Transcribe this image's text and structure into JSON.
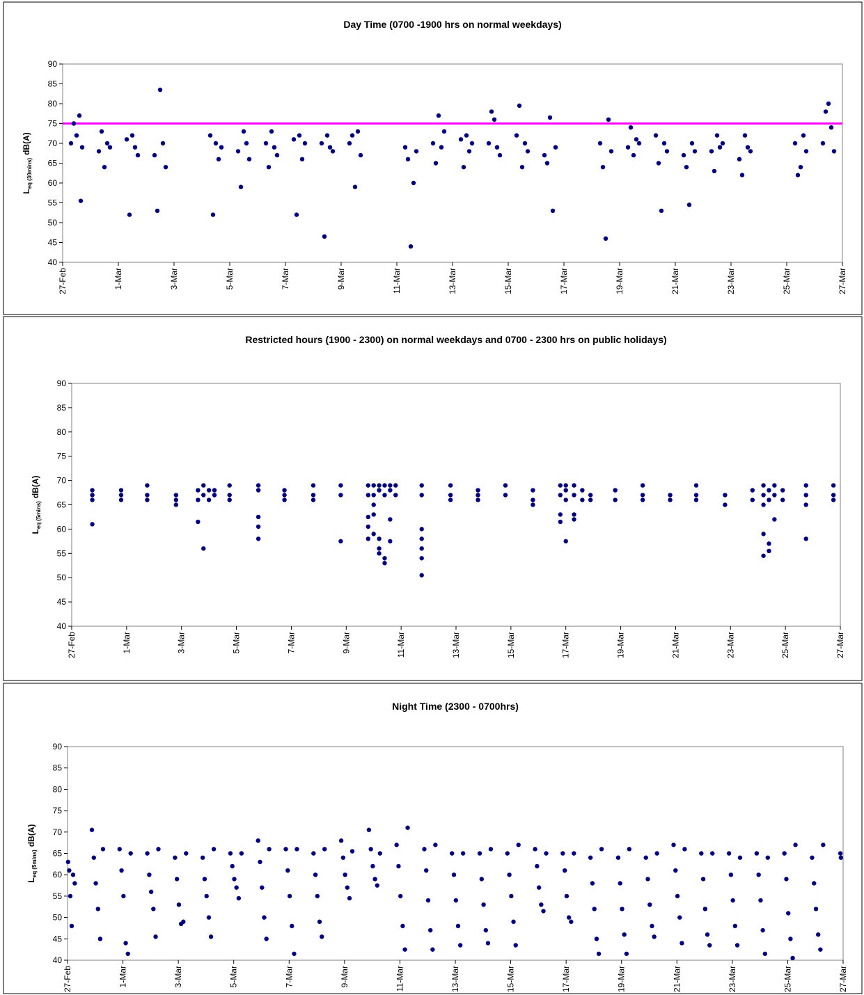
{
  "chart_data": [
    {
      "type": "scatter",
      "title": "Day Time (0700 -1900 hrs on normal weekdays)",
      "y_label": [
        "L",
        "eq (30mins)",
        "dB(A)"
      ],
      "color": "#000080",
      "hline": {
        "value": 75,
        "color": "#ff00ff"
      },
      "xlim": [
        0,
        28
      ],
      "ylim": [
        40,
        90
      ],
      "yticks": [
        40,
        45,
        50,
        55,
        60,
        65,
        70,
        75,
        80,
        85,
        90
      ],
      "xticks": [
        {
          "value": 0,
          "label": "27-Feb"
        },
        {
          "value": 2,
          "label": "1-Mar"
        },
        {
          "value": 4,
          "label": "3-Mar"
        },
        {
          "value": 6,
          "label": "5-Mar"
        },
        {
          "value": 8,
          "label": "7-Mar"
        },
        {
          "value": 10,
          "label": "9-Mar"
        },
        {
          "value": 12,
          "label": "11-Mar"
        },
        {
          "value": 14,
          "label": "13-Mar"
        },
        {
          "value": 16,
          "label": "15-Mar"
        },
        {
          "value": 18,
          "label": "17-Mar"
        },
        {
          "value": 20,
          "label": "19-Mar"
        },
        {
          "value": 22,
          "label": "21-Mar"
        },
        {
          "value": 24,
          "label": "23-Mar"
        },
        {
          "value": 26,
          "label": "25-Mar"
        },
        {
          "value": 28,
          "label": "27-Mar"
        }
      ],
      "x": [
        0.3,
        0.4,
        0.5,
        0.6,
        0.7,
        0.65,
        1.3,
        1.4,
        1.5,
        1.6,
        1.7,
        2.3,
        2.4,
        2.5,
        2.6,
        2.7,
        3.3,
        3.4,
        3.5,
        3.6,
        3.7,
        5.3,
        5.4,
        5.5,
        5.6,
        5.7,
        6.3,
        6.4,
        6.5,
        6.6,
        6.7,
        7.3,
        7.4,
        7.5,
        7.6,
        7.7,
        8.3,
        8.4,
        8.5,
        8.6,
        8.7,
        9.3,
        9.4,
        9.5,
        9.6,
        9.7,
        10.3,
        10.4,
        10.5,
        10.6,
        10.7,
        12.3,
        12.4,
        12.5,
        12.6,
        12.7,
        13.3,
        13.4,
        13.5,
        13.6,
        13.7,
        14.3,
        14.4,
        14.5,
        14.6,
        14.7,
        15.3,
        15.4,
        15.5,
        15.6,
        15.7,
        16.3,
        16.4,
        16.5,
        16.6,
        16.7,
        17.3,
        17.4,
        17.5,
        17.6,
        17.7,
        19.3,
        19.4,
        19.5,
        19.6,
        19.7,
        20.3,
        20.4,
        20.5,
        20.6,
        20.7,
        21.3,
        21.4,
        21.5,
        21.6,
        21.7,
        22.3,
        22.4,
        22.5,
        22.6,
        22.7,
        23.3,
        23.4,
        23.5,
        23.6,
        23.7,
        24.3,
        24.4,
        24.5,
        24.6,
        24.7,
        26.3,
        26.4,
        26.5,
        26.6,
        26.7,
        27.3,
        27.4,
        27.5,
        27.6,
        27.7
      ],
      "values": [
        70,
        75,
        72,
        77,
        69,
        55.5,
        68,
        73,
        64,
        70,
        69,
        71,
        52,
        72,
        69,
        67,
        67,
        53,
        83.5,
        70,
        64,
        72,
        52,
        70,
        66,
        69,
        68,
        59,
        73,
        70,
        66,
        70,
        64,
        73,
        69,
        67,
        71,
        52,
        72,
        66,
        70,
        70,
        46.5,
        72,
        69,
        68,
        70,
        72,
        59,
        73,
        67,
        69,
        66,
        44,
        60,
        68,
        70,
        65,
        77,
        69,
        73,
        71,
        64,
        72,
        68,
        70,
        70,
        78,
        76,
        69,
        67,
        72,
        79.5,
        64,
        70,
        68,
        67,
        65,
        76.5,
        53,
        69,
        70,
        64,
        46,
        76,
        68,
        69,
        74,
        67,
        71,
        70,
        72,
        65,
        53,
        70,
        68,
        67,
        64,
        54.5,
        70,
        68,
        68,
        63,
        72,
        69,
        70,
        66,
        62,
        72,
        69,
        68,
        70,
        62,
        64,
        72,
        68,
        70,
        78,
        80,
        74,
        68
      ]
    },
    {
      "type": "scatter",
      "title": "Restricted hours (1900 - 2300) on normal weekdays and 0700 - 2300 hrs on public holidays)",
      "y_label": [
        "L",
        "eq (5mins)",
        "dB(A)"
      ],
      "color": "#000080",
      "xlim": [
        0,
        28
      ],
      "ylim": [
        40,
        90
      ],
      "yticks": [
        40,
        45,
        50,
        55,
        60,
        65,
        70,
        75,
        80,
        85,
        90
      ],
      "xticks": [
        {
          "value": 0,
          "label": "27-Feb"
        },
        {
          "value": 2,
          "label": "1-Mar"
        },
        {
          "value": 4,
          "label": "3-Mar"
        },
        {
          "value": 6,
          "label": "5-Mar"
        },
        {
          "value": 8,
          "label": "7-Mar"
        },
        {
          "value": 10,
          "label": "9-Mar"
        },
        {
          "value": 12,
          "label": "11-Mar"
        },
        {
          "value": 14,
          "label": "13-Mar"
        },
        {
          "value": 16,
          "label": "15-Mar"
        },
        {
          "value": 18,
          "label": "17-Mar"
        },
        {
          "value": 20,
          "label": "19-Mar"
        },
        {
          "value": 22,
          "label": "21-Mar"
        },
        {
          "value": 24,
          "label": "23-Mar"
        },
        {
          "value": 26,
          "label": "25-Mar"
        },
        {
          "value": 28,
          "label": "27-Mar"
        }
      ],
      "x": [
        0.75,
        0.75,
        0.75,
        0.75,
        1.8,
        1.8,
        1.8,
        2.75,
        2.75,
        2.75,
        3.8,
        3.8,
        3.8,
        4.6,
        4.6,
        4.6,
        4.8,
        4.8,
        4.8,
        5.0,
        5.0,
        5.2,
        5.2,
        5.75,
        5.75,
        5.75,
        6.8,
        6.8,
        6.8,
        6.8,
        6.8,
        7.75,
        7.75,
        7.75,
        8.8,
        8.8,
        8.8,
        9.8,
        9.8,
        9.8,
        10.8,
        10.8,
        10.8,
        10.8,
        10.8,
        11.0,
        11.0,
        11.0,
        11.0,
        11.0,
        11.2,
        11.2,
        11.2,
        11.2,
        11.2,
        11.4,
        11.4,
        11.4,
        11.4,
        11.6,
        11.6,
        11.6,
        11.6,
        11.8,
        11.8,
        12.75,
        12.75,
        12.75,
        12.75,
        12.75,
        12.75,
        12.75,
        13.8,
        13.8,
        13.8,
        14.8,
        14.8,
        14.8,
        15.8,
        15.8,
        16.8,
        16.8,
        16.8,
        17.8,
        17.8,
        17.8,
        17.8,
        18.0,
        18.0,
        18.0,
        18.0,
        18.3,
        18.3,
        18.3,
        18.3,
        18.6,
        18.6,
        18.9,
        18.9,
        19.8,
        19.8,
        20.8,
        20.8,
        20.8,
        21.8,
        21.8,
        22.75,
        22.75,
        22.75,
        23.8,
        23.8,
        24.8,
        24.8,
        25.2,
        25.2,
        25.2,
        25.2,
        25.2,
        25.4,
        25.4,
        25.4,
        25.4,
        25.6,
        25.6,
        25.6,
        25.9,
        25.9,
        26.75,
        26.75,
        26.75,
        26.75,
        27.75,
        27.75,
        27.75
      ],
      "values": [
        68,
        67,
        66,
        61,
        68,
        67,
        66,
        69,
        67,
        66,
        67,
        66,
        65,
        68,
        66,
        61.5,
        69,
        67,
        56,
        68,
        66,
        68,
        67,
        69,
        67,
        66,
        69,
        68,
        62.5,
        60.5,
        58,
        68,
        67,
        66,
        69,
        67,
        66,
        69,
        67,
        57.5,
        69,
        67,
        62.5,
        60.5,
        58,
        69,
        67,
        65,
        63,
        59,
        69,
        68,
        58,
        56,
        55,
        69,
        67,
        54,
        53,
        69,
        68,
        62,
        57.5,
        69,
        67,
        69,
        67,
        60,
        58,
        56,
        54,
        50.5,
        69,
        67,
        66,
        68,
        67,
        66,
        69,
        67,
        68,
        66,
        65,
        69,
        67,
        63,
        61.5,
        69,
        68,
        66,
        57.5,
        69,
        67,
        63,
        62,
        68,
        66,
        67,
        66,
        68,
        66,
        69,
        67,
        66,
        67,
        66,
        69,
        67,
        66,
        67,
        65,
        68,
        66,
        69,
        67,
        65,
        59,
        54.5,
        68,
        66,
        57,
        55.5,
        69,
        67,
        62,
        68,
        66,
        69,
        67,
        65,
        58,
        69,
        67,
        66
      ]
    },
    {
      "type": "scatter",
      "title": "Night Time (2300 - 0700hrs)",
      "y_label": [
        "L",
        "eq (5mins)",
        "dB(A)"
      ],
      "color": "#000080",
      "xlim": [
        0,
        28
      ],
      "ylim": [
        40,
        90
      ],
      "yticks": [
        40,
        45,
        50,
        55,
        60,
        65,
        70,
        75,
        80,
        85,
        90
      ],
      "xticks": [
        {
          "value": 0,
          "label": "27-Feb"
        },
        {
          "value": 2,
          "label": "1-Mar"
        },
        {
          "value": 4,
          "label": "3-Mar"
        },
        {
          "value": 6,
          "label": "5-Mar"
        },
        {
          "value": 8,
          "label": "7-Mar"
        },
        {
          "value": 10,
          "label": "9-Mar"
        },
        {
          "value": 12,
          "label": "11-Mar"
        },
        {
          "value": 14,
          "label": "13-Mar"
        },
        {
          "value": 16,
          "label": "15-Mar"
        },
        {
          "value": 18,
          "label": "17-Mar"
        },
        {
          "value": 20,
          "label": "19-Mar"
        },
        {
          "value": 22,
          "label": "21-Mar"
        },
        {
          "value": 24,
          "label": "23-Mar"
        },
        {
          "value": 26,
          "label": "25-Mar"
        },
        {
          "value": 28,
          "label": "27-Mar"
        }
      ],
      "x": [
        0.02,
        0.06,
        0.1,
        0.15,
        0.2,
        0.26,
        0.88,
        0.95,
        1.02,
        1.1,
        1.18,
        1.28,
        1.88,
        1.95,
        2.02,
        2.1,
        2.18,
        2.28,
        2.88,
        2.95,
        3.02,
        3.1,
        3.18,
        3.28,
        3.88,
        3.95,
        4.02,
        4.1,
        4.18,
        4.28,
        4.88,
        4.95,
        5.02,
        5.1,
        5.18,
        5.28,
        5.88,
        5.95,
        6.02,
        6.1,
        6.18,
        6.28,
        6.88,
        6.95,
        7.02,
        7.1,
        7.18,
        7.28,
        7.88,
        7.95,
        8.02,
        8.1,
        8.18,
        8.28,
        8.88,
        8.95,
        9.02,
        9.1,
        9.18,
        9.28,
        9.88,
        9.95,
        10.02,
        10.1,
        10.18,
        10.28,
        10.88,
        10.95,
        11.02,
        11.1,
        11.18,
        11.28,
        11.88,
        11.95,
        12.02,
        12.1,
        12.18,
        12.28,
        12.88,
        12.95,
        13.02,
        13.1,
        13.18,
        13.28,
        13.88,
        13.95,
        14.02,
        14.1,
        14.18,
        14.28,
        14.88,
        14.95,
        15.02,
        15.1,
        15.18,
        15.28,
        15.88,
        15.95,
        16.02,
        16.1,
        16.18,
        16.28,
        16.88,
        16.95,
        17.02,
        17.1,
        17.18,
        17.28,
        17.88,
        17.95,
        18.02,
        18.1,
        18.18,
        18.28,
        18.88,
        18.95,
        19.02,
        19.1,
        19.18,
        19.28,
        19.88,
        19.95,
        20.02,
        20.1,
        20.18,
        20.28,
        20.88,
        20.95,
        21.02,
        21.1,
        21.18,
        21.28,
        21.88,
        21.95,
        22.02,
        22.1,
        22.18,
        22.28,
        22.88,
        22.95,
        23.02,
        23.1,
        23.18,
        23.28,
        23.88,
        23.95,
        24.02,
        24.1,
        24.18,
        24.28,
        24.88,
        24.95,
        25.02,
        25.1,
        25.18,
        25.28,
        25.88,
        25.95,
        26.02,
        26.1,
        26.18,
        26.28,
        26.88,
        26.95,
        27.02,
        27.1,
        27.18,
        27.28,
        27.9,
        27.92
      ],
      "values": [
        63,
        61,
        55,
        48,
        60,
        58,
        70.5,
        64,
        58,
        52,
        45,
        66,
        66,
        61,
        55,
        44,
        41.5,
        65,
        65,
        60,
        56,
        52,
        45.5,
        66,
        64,
        59,
        53,
        48.5,
        49,
        65,
        64,
        59,
        55,
        50,
        45.5,
        66,
        65,
        62,
        59,
        57,
        54.5,
        65,
        68,
        63,
        57,
        50,
        45,
        66,
        66,
        61,
        55,
        48,
        41.5,
        66,
        65,
        60,
        55,
        49,
        45.5,
        66,
        68,
        64,
        60,
        57,
        54.5,
        65.5,
        70.5,
        66,
        62,
        59,
        57.5,
        65,
        67,
        62,
        55,
        48,
        42.5,
        71,
        66,
        61,
        54,
        47,
        42.5,
        67,
        65,
        60,
        54,
        48,
        43.5,
        65,
        65,
        59,
        53,
        47,
        44,
        66,
        65,
        60,
        55,
        49,
        43.5,
        67,
        66,
        62,
        57,
        53,
        51.5,
        65,
        65,
        61,
        55,
        50,
        49,
        65,
        64,
        58,
        52,
        45,
        41.5,
        66,
        64,
        58,
        52,
        46,
        41.5,
        66,
        64,
        59,
        53,
        48,
        45.5,
        65,
        67,
        61,
        55,
        50,
        44,
        66,
        65,
        59,
        52,
        46,
        43.5,
        65,
        65,
        60,
        54,
        48,
        43.5,
        64,
        65,
        60,
        54,
        47,
        41.5,
        64,
        65,
        59,
        51,
        45,
        40.5,
        67,
        64,
        58,
        52,
        46,
        42.5,
        67,
        65,
        64
      ]
    }
  ]
}
